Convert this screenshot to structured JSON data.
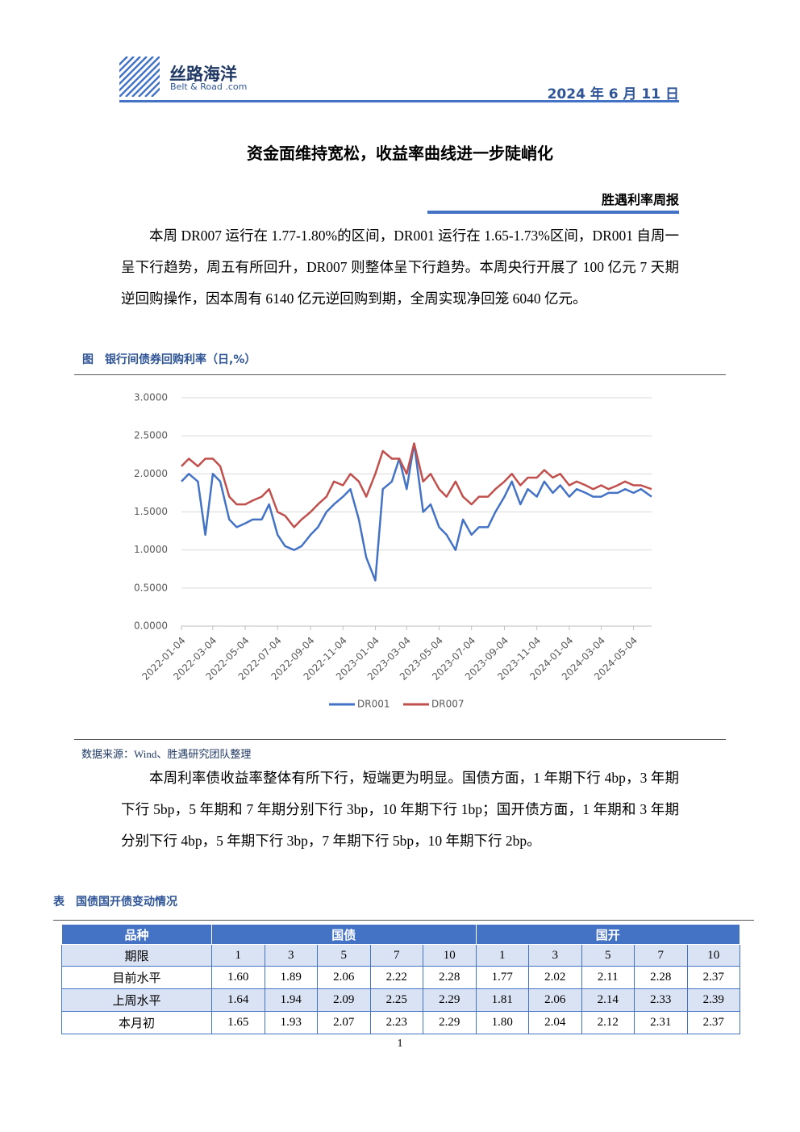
{
  "header": {
    "logo_name": "丝路海洋",
    "logo_sub": "Belt & Road .com",
    "date": "2024 年 6 月 11 日"
  },
  "title": "资金面维持宽松，收益率曲线进一步陡峭化",
  "report_name": "胜遇利率周报",
  "paragraphs": [
    "本周 DR007 运行在 1.77-1.80%的区间，DR001 运行在 1.65-1.73%区间，DR001 自周一呈下行趋势，周五有所回升，DR007 则整体呈下行趋势。本周央行开展了 100 亿元 7 天期逆回购操作，因本周有 6140 亿元逆回购到期，全周实现净回笼 6040 亿元。",
    "本周利率债收益率整体有所下行，短端更为明显。国债方面，1 年期下行 4bp，3 年期下行 5bp，5 年期和 7 年期分别下行 3bp，10 年期下行 1bp；国开债方面，1 年期和 3 年期分别下行 4bp，5 年期下行 3bp，7 年期下行 5bp，10 年期下行 2bp。"
  ],
  "figure_caption": "图　银行间债券回购利率（日,%）",
  "chart_data": {
    "type": "line",
    "x": [
      "2022-01-04",
      "2022-01-18",
      "2022-02-04",
      "2022-02-18",
      "2022-03-04",
      "2022-03-18",
      "2022-04-04",
      "2022-04-18",
      "2022-05-04",
      "2022-05-18",
      "2022-06-04",
      "2022-06-18",
      "2022-07-04",
      "2022-07-18",
      "2022-08-04",
      "2022-08-18",
      "2022-09-04",
      "2022-09-18",
      "2022-10-04",
      "2022-10-18",
      "2022-11-04",
      "2022-11-18",
      "2022-12-04",
      "2022-12-18",
      "2023-01-04",
      "2023-01-18",
      "2023-02-04",
      "2023-02-18",
      "2023-03-04",
      "2023-03-18",
      "2023-04-04",
      "2023-04-18",
      "2023-05-04",
      "2023-05-18",
      "2023-06-04",
      "2023-06-18",
      "2023-07-04",
      "2023-07-18",
      "2023-08-04",
      "2023-08-18",
      "2023-09-04",
      "2023-09-18",
      "2023-10-04",
      "2023-10-18",
      "2023-11-04",
      "2023-11-18",
      "2023-12-04",
      "2023-12-18",
      "2024-01-04",
      "2024-01-18",
      "2024-02-04",
      "2024-02-18",
      "2024-03-04",
      "2024-03-18",
      "2024-04-04",
      "2024-04-18",
      "2024-05-04",
      "2024-05-18",
      "2024-06-07"
    ],
    "series": [
      {
        "name": "DR001",
        "color": "#4472c4",
        "values": [
          1.9,
          2.0,
          1.9,
          1.2,
          2.0,
          1.9,
          1.4,
          1.3,
          1.35,
          1.4,
          1.4,
          1.6,
          1.2,
          1.05,
          1.0,
          1.05,
          1.2,
          1.3,
          1.5,
          1.6,
          1.7,
          1.8,
          1.4,
          0.9,
          0.6,
          1.8,
          1.9,
          2.2,
          1.8,
          2.4,
          1.5,
          1.6,
          1.3,
          1.2,
          1.0,
          1.4,
          1.2,
          1.3,
          1.3,
          1.5,
          1.7,
          1.9,
          1.6,
          1.8,
          1.7,
          1.9,
          1.75,
          1.85,
          1.7,
          1.8,
          1.75,
          1.7,
          1.7,
          1.75,
          1.75,
          1.8,
          1.75,
          1.8,
          1.7
        ]
      },
      {
        "name": "DR007",
        "color": "#c0504d",
        "values": [
          2.1,
          2.2,
          2.1,
          2.2,
          2.2,
          2.1,
          1.7,
          1.6,
          1.6,
          1.65,
          1.7,
          1.8,
          1.5,
          1.45,
          1.3,
          1.4,
          1.5,
          1.6,
          1.7,
          1.9,
          1.85,
          2.0,
          1.9,
          1.7,
          2.0,
          2.3,
          2.2,
          2.2,
          2.0,
          2.4,
          1.9,
          2.0,
          1.8,
          1.7,
          1.9,
          1.7,
          1.6,
          1.7,
          1.7,
          1.8,
          1.9,
          2.0,
          1.85,
          1.95,
          1.95,
          2.05,
          1.95,
          2.0,
          1.85,
          1.9,
          1.85,
          1.8,
          1.85,
          1.8,
          1.85,
          1.9,
          1.85,
          1.85,
          1.8
        ]
      }
    ],
    "xlim": [
      "2022-01-04",
      "2024-06-07"
    ],
    "xticks": [
      "2022-01-04",
      "2022-03-04",
      "2022-05-04",
      "2022-07-04",
      "2022-09-04",
      "2022-11-04",
      "2023-01-04",
      "2023-03-04",
      "2023-05-04",
      "2023-07-04",
      "2023-09-04",
      "2023-11-04",
      "2024-01-04",
      "2024-03-04",
      "2024-05-04"
    ],
    "ylim": [
      0,
      3
    ],
    "yticks": [
      {
        "value": 0,
        "label": "0.0000"
      },
      {
        "value": 0.5,
        "label": "0.5000"
      },
      {
        "value": 1,
        "label": "1.0000"
      },
      {
        "value": 1.5,
        "label": "1.5000"
      },
      {
        "value": 2,
        "label": "2.0000"
      },
      {
        "value": 2.5,
        "label": "2.5000"
      },
      {
        "value": 3,
        "label": "3.0000"
      }
    ],
    "grid": true,
    "legend": "bottom"
  },
  "source": "数据来源：Wind、胜遇研究团队整理",
  "table_caption": "表　国债国开债变动情况",
  "table": {
    "group_header": [
      "品种",
      "国债",
      "国开"
    ],
    "columns": [
      "期限",
      "1",
      "3",
      "5",
      "7",
      "10",
      "1",
      "3",
      "5",
      "7",
      "10"
    ],
    "rows": [
      [
        "目前水平",
        "1.60",
        "1.89",
        "2.06",
        "2.22",
        "2.28",
        "1.77",
        "2.02",
        "2.11",
        "2.28",
        "2.37"
      ],
      [
        "上周水平",
        "1.64",
        "1.94",
        "2.09",
        "2.25",
        "2.29",
        "1.81",
        "2.06",
        "2.14",
        "2.33",
        "2.39"
      ],
      [
        "本月初",
        "1.65",
        "1.93",
        "2.07",
        "2.23",
        "2.29",
        "1.80",
        "2.04",
        "2.12",
        "2.31",
        "2.37"
      ]
    ]
  },
  "page_number": "1"
}
